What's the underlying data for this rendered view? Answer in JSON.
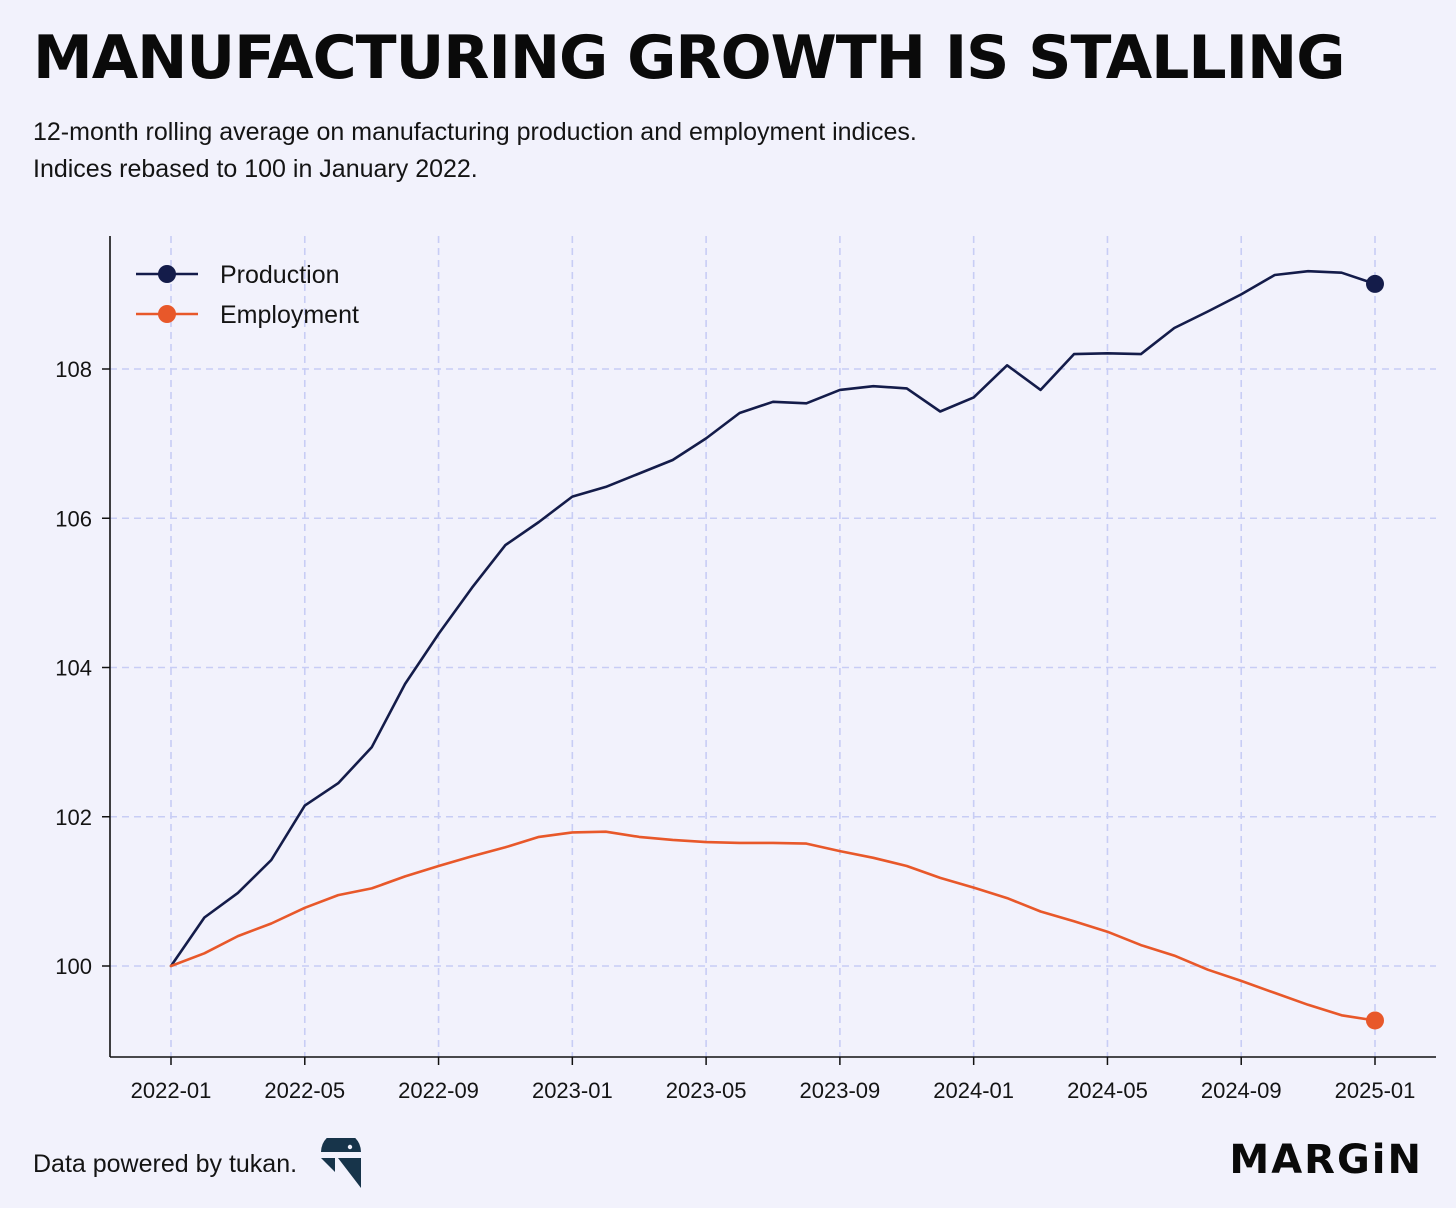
{
  "header": {
    "title": "MANUFACTURING GROWTH IS STALLING",
    "subtitle_line1": "12-month rolling average on manufacturing production and employment indices.",
    "subtitle_line2": "Indices rebased to 100 in January 2022."
  },
  "footer": {
    "source_text": "Data powered by tukan.",
    "brand": "MARGiN"
  },
  "colors": {
    "background": "#f2f2fc",
    "production": "#141c4a",
    "employment": "#e8582a",
    "grid": "#c8cdf5",
    "axis": "#111111",
    "logo": "#17344a"
  },
  "icons": {
    "source_logo": "tukan-logo-icon"
  },
  "chart_data": {
    "type": "line",
    "title": "MANUFACTURING GROWTH IS STALLING",
    "xlabel": "",
    "ylabel": "",
    "x_ticks": [
      "2022-01",
      "2022-05",
      "2022-09",
      "2023-01",
      "2023-05",
      "2023-09",
      "2024-01",
      "2024-05",
      "2024-09",
      "2025-01"
    ],
    "y_ticks": [
      100,
      102,
      104,
      106,
      108
    ],
    "ylim": [
      98.8,
      109.8
    ],
    "xlim": [
      "2021-11",
      "2025-03"
    ],
    "grid": true,
    "legend_position": "top-left",
    "end_markers": true,
    "x": [
      "2022-01",
      "2022-02",
      "2022-03",
      "2022-04",
      "2022-05",
      "2022-06",
      "2022-07",
      "2022-08",
      "2022-09",
      "2022-10",
      "2022-11",
      "2022-12",
      "2023-01",
      "2023-02",
      "2023-03",
      "2023-04",
      "2023-05",
      "2023-06",
      "2023-07",
      "2023-08",
      "2023-09",
      "2023-10",
      "2023-11",
      "2023-12",
      "2024-01",
      "2024-02",
      "2024-03",
      "2024-04",
      "2024-05",
      "2024-06",
      "2024-07",
      "2024-08",
      "2024-09",
      "2024-10",
      "2024-11",
      "2024-12",
      "2025-01"
    ],
    "series": [
      {
        "name": "Production",
        "color": "#141c4a",
        "values": [
          100.0,
          100.65,
          100.98,
          101.42,
          102.15,
          102.45,
          102.93,
          103.78,
          104.45,
          105.07,
          105.64,
          105.95,
          106.29,
          106.42,
          106.6,
          106.78,
          107.07,
          107.41,
          107.56,
          107.54,
          107.72,
          107.77,
          107.74,
          107.43,
          107.62,
          108.05,
          107.72,
          108.2,
          108.21,
          108.2,
          108.55,
          108.77,
          109.0,
          109.26,
          109.31,
          109.29,
          109.14
        ]
      },
      {
        "name": "Employment",
        "color": "#e8582a",
        "values": [
          100.0,
          100.17,
          100.4,
          100.57,
          100.78,
          100.95,
          101.04,
          101.2,
          101.34,
          101.47,
          101.59,
          101.73,
          101.79,
          101.8,
          101.73,
          101.69,
          101.66,
          101.65,
          101.65,
          101.64,
          101.54,
          101.45,
          101.34,
          101.18,
          101.05,
          100.91,
          100.73,
          100.6,
          100.46,
          100.28,
          100.14,
          99.95,
          99.8,
          99.64,
          99.48,
          99.34,
          99.27
        ]
      }
    ]
  }
}
